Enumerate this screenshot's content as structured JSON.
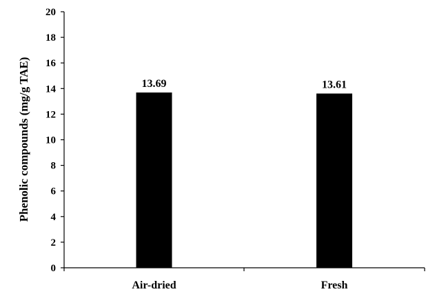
{
  "chart_data": {
    "type": "bar",
    "categories": [
      "Air-dried",
      "Fresh"
    ],
    "values": [
      13.69,
      13.61
    ],
    "data_labels": [
      "13.69",
      "13.61"
    ],
    "ylabel": "Phenolic compounds (mg/g TAE)",
    "xlabel": "",
    "ylim": [
      0,
      20
    ],
    "yticks": [
      0,
      2,
      4,
      6,
      8,
      10,
      12,
      14,
      16,
      18,
      20
    ],
    "ytick_labels": [
      "0",
      "2",
      "4",
      "6",
      "8",
      "10",
      "12",
      "14",
      "16",
      "18",
      "20"
    ],
    "grid": false,
    "legend": "none",
    "bar_color": "#000000"
  }
}
